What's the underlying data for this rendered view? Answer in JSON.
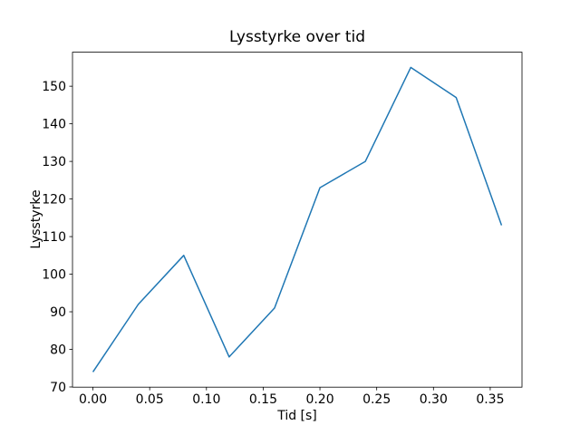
{
  "figure": {
    "background_color": "#ffffff"
  },
  "chart_data": {
    "type": "line",
    "title": "Lysstyrke over tid",
    "xlabel": "Tid [s]",
    "ylabel": "Lysstyrke",
    "x": [
      0.0,
      0.04,
      0.08,
      0.12,
      0.16,
      0.2,
      0.24,
      0.28,
      0.32,
      0.36
    ],
    "series": [
      {
        "name": "Lysstyrke",
        "color": "#1f77b4",
        "values": [
          74,
          92,
          105,
          78,
          91,
          123,
          130,
          155,
          147,
          113
        ]
      }
    ],
    "xlim": [
      -0.018,
      0.378
    ],
    "ylim": [
      69.95,
      159.05
    ],
    "xticks": [
      0.0,
      0.05,
      0.1,
      0.15,
      0.2,
      0.25,
      0.3,
      0.35
    ],
    "xtick_labels": [
      "0.00",
      "0.05",
      "0.10",
      "0.15",
      "0.20",
      "0.25",
      "0.30",
      "0.35"
    ],
    "yticks": [
      70,
      80,
      90,
      100,
      110,
      120,
      130,
      140,
      150
    ],
    "ytick_labels": [
      "70",
      "80",
      "90",
      "100",
      "110",
      "120",
      "130",
      "140",
      "150"
    ],
    "grid": false,
    "legend_position": "none",
    "marker": "none",
    "line_width": 1.5,
    "axes_color": "#000000"
  }
}
